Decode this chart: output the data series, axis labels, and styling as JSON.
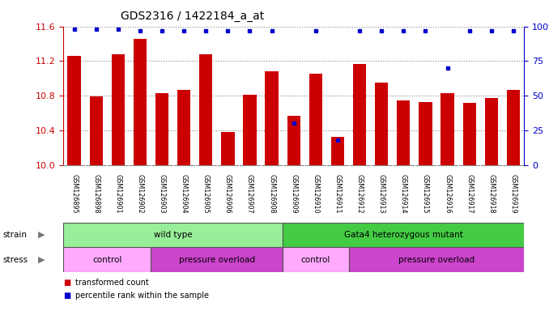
{
  "title": "GDS2316 / 1422184_a_at",
  "samples": [
    "GSM126895",
    "GSM126898",
    "GSM126901",
    "GSM126902",
    "GSM126903",
    "GSM126904",
    "GSM126905",
    "GSM126906",
    "GSM126907",
    "GSM126908",
    "GSM126909",
    "GSM126910",
    "GSM126911",
    "GSM126912",
    "GSM126913",
    "GSM126914",
    "GSM126915",
    "GSM126916",
    "GSM126917",
    "GSM126918",
    "GSM126919"
  ],
  "transformed_counts": [
    11.26,
    10.79,
    11.28,
    11.46,
    10.83,
    10.87,
    11.28,
    10.38,
    10.81,
    11.08,
    10.57,
    11.05,
    10.32,
    11.17,
    10.95,
    10.74,
    10.73,
    10.83,
    10.72,
    10.77,
    10.87
  ],
  "percentile_ranks": [
    98,
    98,
    98,
    97,
    97,
    97,
    97,
    97,
    97,
    97,
    30,
    97,
    18,
    97,
    97,
    97,
    97,
    70,
    97,
    97,
    97
  ],
  "bar_color": "#cc0000",
  "dot_color": "#0000cc",
  "ylim_left": [
    10.0,
    11.6
  ],
  "ylim_right": [
    0,
    100
  ],
  "yticks_left": [
    10.0,
    10.4,
    10.8,
    11.2,
    11.6
  ],
  "yticks_right": [
    0,
    25,
    50,
    75,
    100
  ],
  "strain_groups": [
    {
      "label": "wild type",
      "start": 0,
      "end": 10,
      "color": "#99ee99"
    },
    {
      "label": "Gata4 heterozygous mutant",
      "start": 10,
      "end": 21,
      "color": "#44cc44"
    }
  ],
  "stress_groups": [
    {
      "label": "control",
      "start": 0,
      "end": 4,
      "color": "#ffaaff"
    },
    {
      "label": "pressure overload",
      "start": 4,
      "end": 10,
      "color": "#cc44cc"
    },
    {
      "label": "control",
      "start": 10,
      "end": 13,
      "color": "#ffaaff"
    },
    {
      "label": "pressure overload",
      "start": 13,
      "end": 21,
      "color": "#cc44cc"
    }
  ],
  "legend_items": [
    {
      "label": "transformed count",
      "color": "#cc0000"
    },
    {
      "label": "percentile rank within the sample",
      "color": "#0000cc"
    }
  ],
  "bg_color": "#ffffff",
  "grid_color": "#888888",
  "left_axis_color": "#cc0000",
  "right_axis_color": "#0000cc",
  "xtick_bg": "#cccccc"
}
